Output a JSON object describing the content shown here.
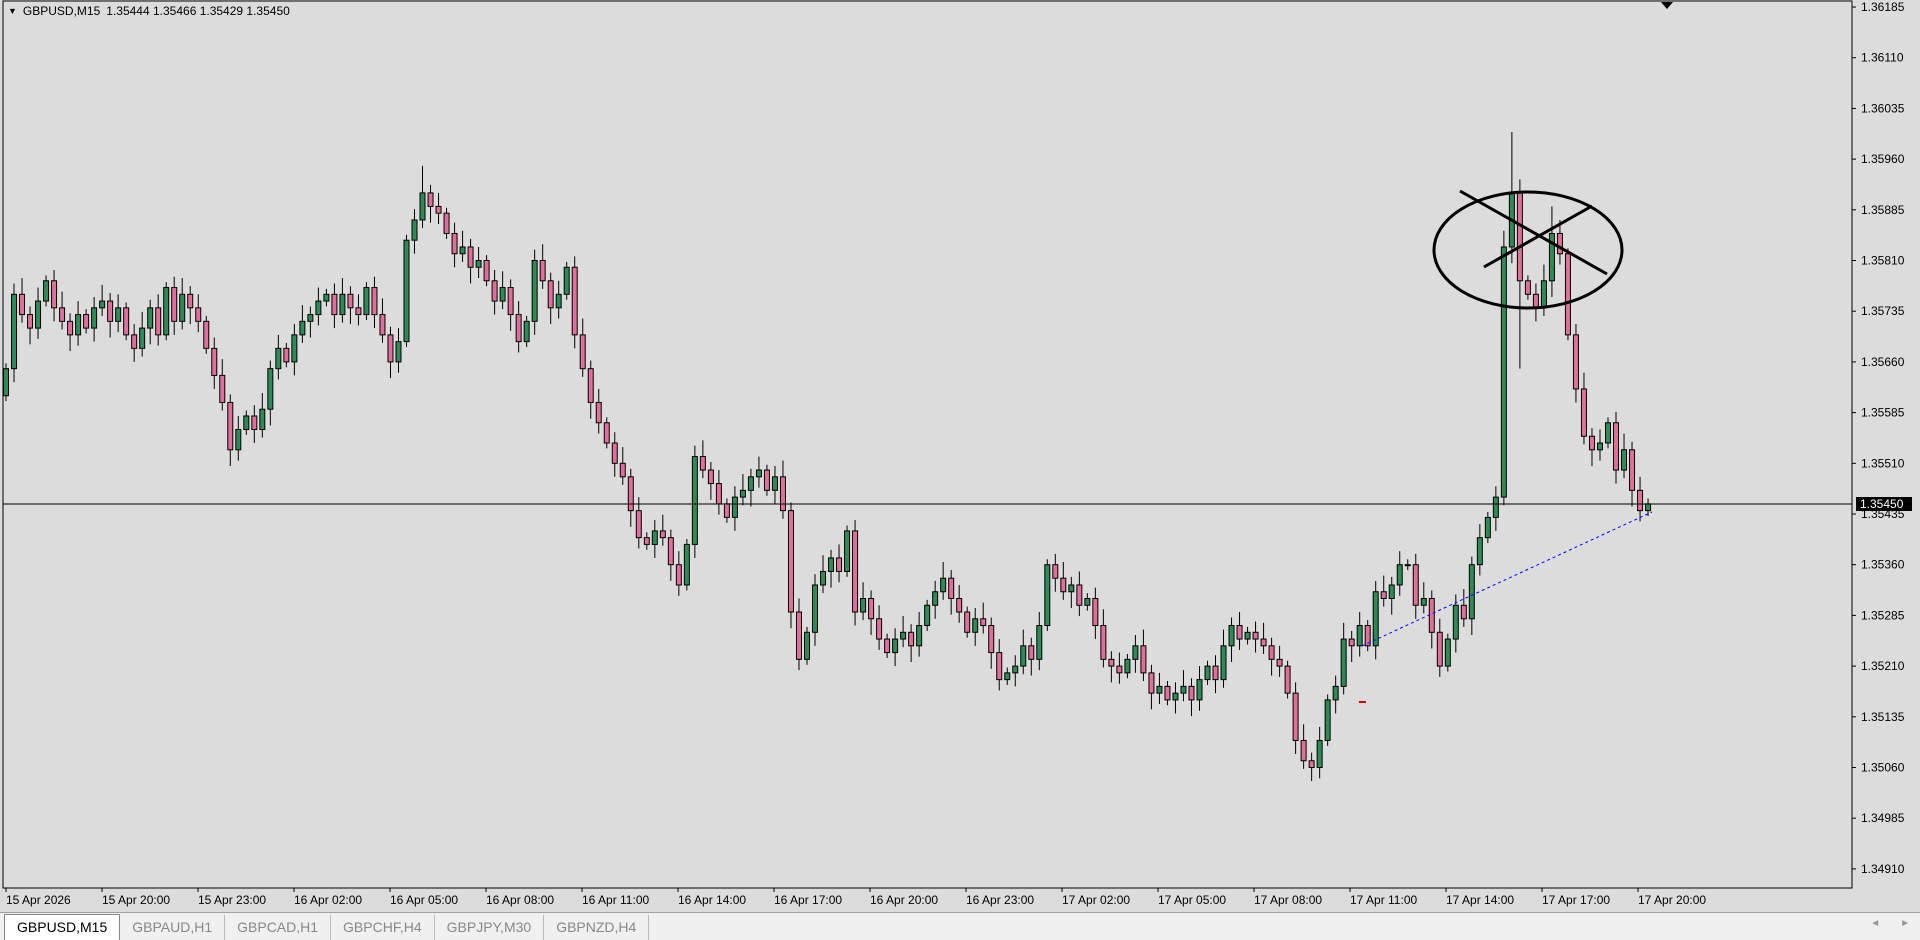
{
  "header": {
    "symbol": "GBPUSD,M15",
    "ohlc": "1.35444 1.35466 1.35429 1.35450"
  },
  "tabs": [
    {
      "label": "GBPUSD,M15",
      "active": true
    },
    {
      "label": "GBPAUD,H1"
    },
    {
      "label": "GBPCAD,H1"
    },
    {
      "label": "GBPCHF,H4"
    },
    {
      "label": "GBPJPY,M30"
    },
    {
      "label": "GBPNZD,H4"
    }
  ],
  "colors": {
    "background": "#dcdcdc",
    "bull": "#2e8b57",
    "bear": "#e0709a",
    "trendline": "#0000ff",
    "bid_line": "#000000"
  },
  "chart_data": {
    "type": "candlestick",
    "timeframe": "M15",
    "bid": 1.3545,
    "bid_label": "1.35450",
    "ylim": [
      1.3488,
      1.362
    ],
    "y_ticks": [
      "1.36185",
      "1.36110",
      "1.36035",
      "1.35960",
      "1.35885",
      "1.35810",
      "1.35735",
      "1.35660",
      "1.35585",
      "1.35510",
      "1.35435",
      "1.35360",
      "1.35285",
      "1.35210",
      "1.35135",
      "1.35060",
      "1.34985",
      "1.34910"
    ],
    "x_ticks": [
      "15 Apr 2026",
      "15 Apr 20:00",
      "15 Apr 23:00",
      "16 Apr 02:00",
      "16 Apr 05:00",
      "16 Apr 08:00",
      "16 Apr 11:00",
      "16 Apr 14:00",
      "16 Apr 17:00",
      "16 Apr 20:00",
      "16 Apr 23:00",
      "17 Apr 02:00",
      "17 Apr 05:00",
      "17 Apr 08:00",
      "17 Apr 11:00",
      "17 Apr 14:00",
      "17 Apr 17:00",
      "17 Apr 20:00"
    ],
    "closes": [
      1.3565,
      1.3576,
      1.3573,
      1.3571,
      1.3575,
      1.3578,
      1.3574,
      1.3572,
      1.357,
      1.3573,
      1.3571,
      1.3574,
      1.3575,
      1.3572,
      1.3574,
      1.357,
      1.3568,
      1.3571,
      1.3574,
      1.357,
      1.3577,
      1.3572,
      1.3576,
      1.3574,
      1.3572,
      1.3568,
      1.3564,
      1.356,
      1.3553,
      1.3556,
      1.3558,
      1.3556,
      1.3559,
      1.3565,
      1.3568,
      1.3566,
      1.357,
      1.3572,
      1.3573,
      1.3575,
      1.3576,
      1.3573,
      1.3576,
      1.3574,
      1.3573,
      1.3577,
      1.3573,
      1.357,
      1.3566,
      1.3569,
      1.3584,
      1.3587,
      1.3591,
      1.3589,
      1.3588,
      1.3585,
      1.3582,
      1.3583,
      1.358,
      1.3581,
      1.3578,
      1.3575,
      1.3577,
      1.3573,
      1.3569,
      1.3572,
      1.3581,
      1.3578,
      1.3574,
      1.3576,
      1.358,
      1.357,
      1.3565,
      1.356,
      1.3557,
      1.3554,
      1.3551,
      1.3549,
      1.3544,
      1.354,
      1.3539,
      1.3541,
      1.354,
      1.3536,
      1.3533,
      1.3539,
      1.3552,
      1.355,
      1.3548,
      1.3545,
      1.3543,
      1.3546,
      1.3547,
      1.3549,
      1.355,
      1.3547,
      1.3549,
      1.3544,
      1.3529,
      1.3522,
      1.3526,
      1.3533,
      1.3535,
      1.3537,
      1.3535,
      1.3541,
      1.3529,
      1.3531,
      1.3528,
      1.3525,
      1.3523,
      1.3525,
      1.3526,
      1.3524,
      1.3527,
      1.353,
      1.3532,
      1.3534,
      1.3531,
      1.3529,
      1.3526,
      1.3528,
      1.3527,
      1.3523,
      1.3519,
      1.352,
      1.3521,
      1.3524,
      1.3522,
      1.3527,
      1.3536,
      1.3534,
      1.3532,
      1.3533,
      1.353,
      1.3531,
      1.3527,
      1.3522,
      1.3521,
      1.352,
      1.3522,
      1.3524,
      1.352,
      1.3517,
      1.3518,
      1.3516,
      1.3517,
      1.3518,
      1.3516,
      1.3519,
      1.3521,
      1.3519,
      1.3524,
      1.3527,
      1.3525,
      1.3526,
      1.3525,
      1.3524,
      1.3522,
      1.3521,
      1.3517,
      1.351,
      1.3507,
      1.3506,
      1.351,
      1.3516,
      1.3518,
      1.3525,
      1.3524,
      1.3527,
      1.3524,
      1.3532,
      1.3531,
      1.3533,
      1.3536,
      1.3536,
      1.353,
      1.3531,
      1.3526,
      1.3521,
      1.3525,
      1.353,
      1.3528,
      1.3536,
      1.354,
      1.3543,
      1.3546,
      1.3583,
      1.3591,
      1.3578,
      1.3576,
      1.3574,
      1.3578,
      1.3585,
      1.3582,
      1.357,
      1.3562,
      1.3555,
      1.3553,
      1.3554,
      1.3557,
      1.355,
      1.3553,
      1.3547,
      1.3544,
      1.3545
    ],
    "notable_highs": {
      "52": 1.3595,
      "188": 1.36,
      "193": 1.3589
    },
    "notable_lows": {
      "163": 1.3504,
      "189": 1.3565
    }
  }
}
